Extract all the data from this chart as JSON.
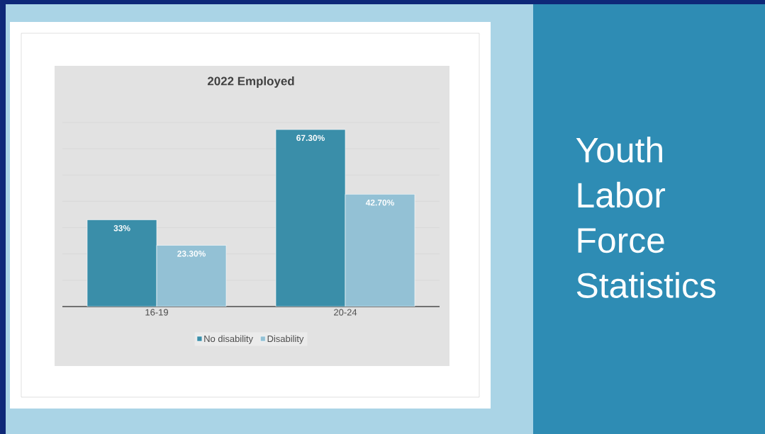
{
  "chart_data": {
    "type": "bar",
    "title": "2022 Employed",
    "categories": [
      "16-19",
      "20-24"
    ],
    "series": [
      {
        "name": "No disability",
        "color": "#3a8ea9",
        "values": [
          33,
          67.3
        ],
        "value_labels": [
          "33%",
          "67.30%"
        ]
      },
      {
        "name": "Disability",
        "color": "#93c1d5",
        "values": [
          23.3,
          42.7
        ],
        "value_labels": [
          "23.30%",
          "42.70%"
        ]
      }
    ],
    "tick_labels": "x",
    "grid": "y",
    "legend": "bottom",
    "annotations": [
      "Youth Labor Force Statistics"
    ]
  }
}
